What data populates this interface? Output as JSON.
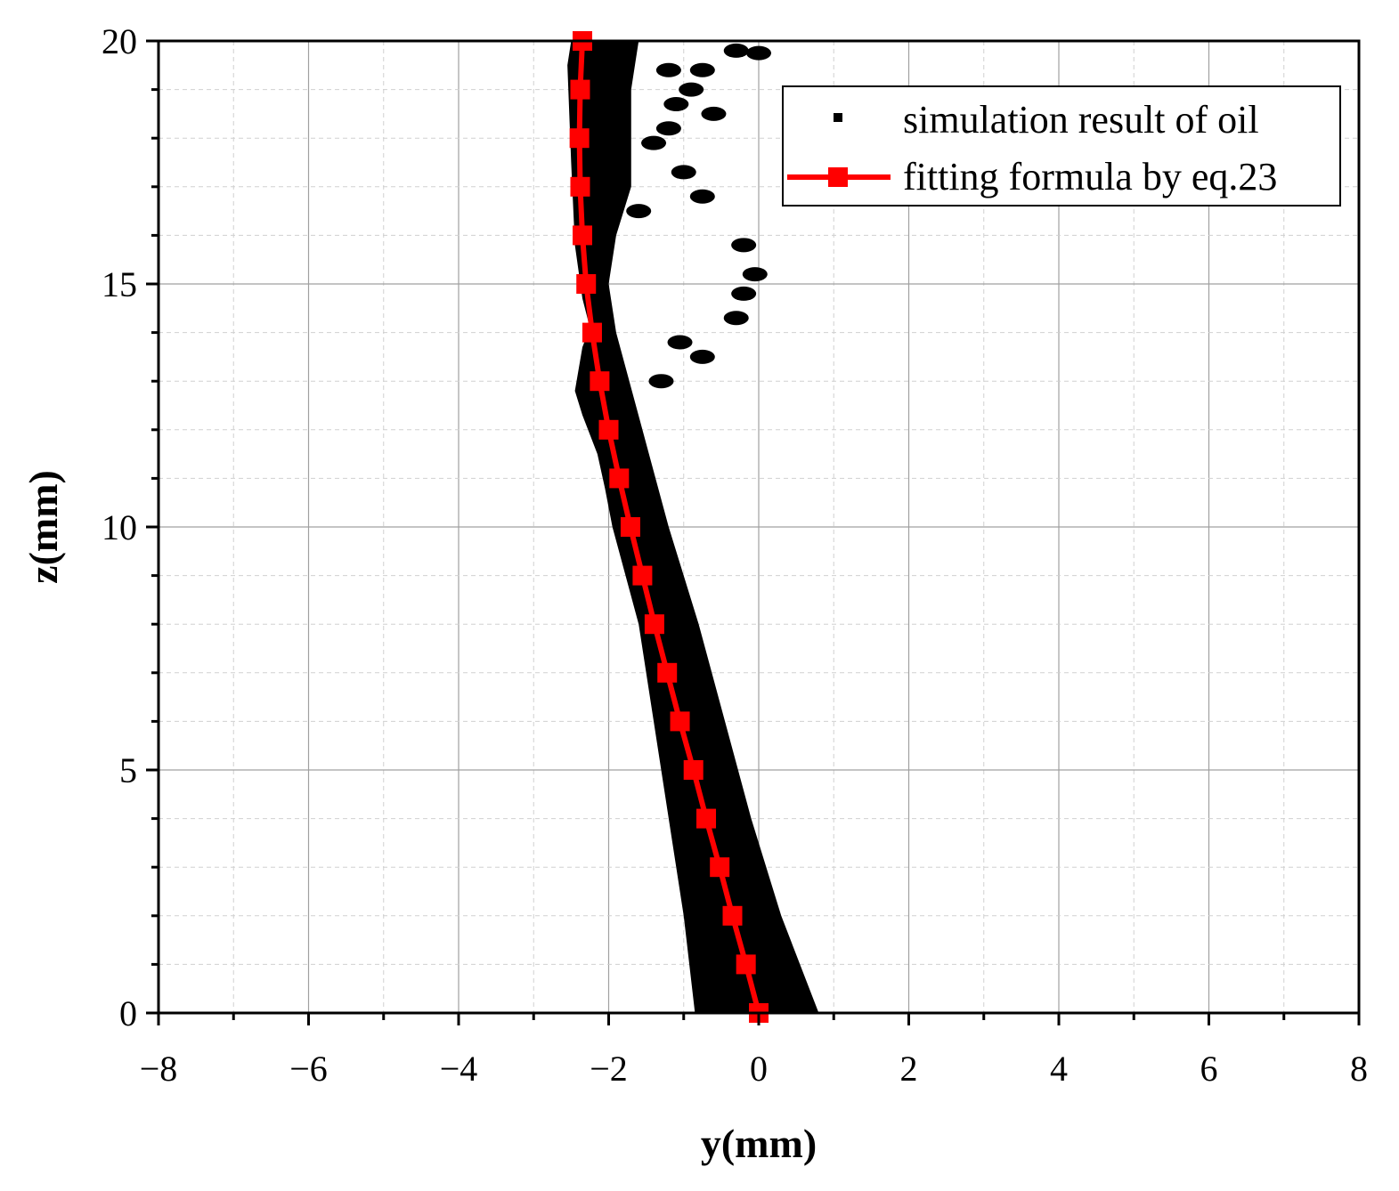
{
  "chart_data": {
    "type": "scatter",
    "xlabel": "y(mm)",
    "ylabel": "z(mm)",
    "xlim": [
      -8,
      8
    ],
    "ylim": [
      0,
      20
    ],
    "x_ticks": [
      -8,
      -6,
      -4,
      -2,
      0,
      2,
      4,
      6,
      8
    ],
    "x_tick_labels": [
      "−8",
      "−6",
      "−4",
      "−2",
      "0",
      "2",
      "4",
      "6",
      "8"
    ],
    "y_ticks": [
      0,
      5,
      10,
      15,
      20
    ],
    "y_tick_labels": [
      "0",
      "5",
      "10",
      "15",
      "20"
    ],
    "grid": true,
    "legend_position": "top-right",
    "colors": {
      "oil": "#000000",
      "fit": "#ff0000",
      "grid_major": "#a0a0a0",
      "grid_minor": "#d0d0d0"
    },
    "series": [
      {
        "name": "simulation result of oil",
        "kind": "filled-region",
        "left_edge": [
          [
            -0.85,
            0
          ],
          [
            -1.0,
            2
          ],
          [
            -1.2,
            4
          ],
          [
            -1.4,
            6
          ],
          [
            -1.6,
            8
          ],
          [
            -1.95,
            10
          ],
          [
            -2.05,
            10.8
          ],
          [
            -2.15,
            11.5
          ],
          [
            -2.35,
            12.3
          ],
          [
            -2.45,
            12.8
          ],
          [
            -2.35,
            13.7
          ],
          [
            -2.25,
            14.1
          ],
          [
            -2.35,
            14.7
          ],
          [
            -2.45,
            15.8
          ],
          [
            -2.5,
            17.5
          ],
          [
            -2.55,
            19.5
          ],
          [
            -2.5,
            20
          ]
        ],
        "right_edge": [
          [
            0.8,
            0
          ],
          [
            0.3,
            2
          ],
          [
            -0.1,
            4
          ],
          [
            -0.45,
            6
          ],
          [
            -0.8,
            8
          ],
          [
            -1.2,
            10
          ],
          [
            -1.55,
            12
          ],
          [
            -1.9,
            14
          ],
          [
            -2.0,
            15
          ],
          [
            -1.9,
            16
          ],
          [
            -1.7,
            17
          ],
          [
            -1.7,
            18
          ],
          [
            -1.7,
            19
          ],
          [
            -1.6,
            20
          ]
        ],
        "droplets": [
          [
            -1.2,
            19.4
          ],
          [
            -0.75,
            19.4
          ],
          [
            -0.3,
            19.8
          ],
          [
            0.0,
            19.75
          ],
          [
            -0.9,
            19.0
          ],
          [
            -1.1,
            18.7
          ],
          [
            -0.6,
            18.5
          ],
          [
            -1.2,
            18.2
          ],
          [
            -1.4,
            17.9
          ],
          [
            -1.0,
            17.3
          ],
          [
            -0.75,
            16.8
          ],
          [
            -1.6,
            16.5
          ],
          [
            -0.2,
            15.8
          ],
          [
            -0.05,
            15.2
          ],
          [
            -0.2,
            14.8
          ],
          [
            -0.3,
            14.3
          ],
          [
            -1.05,
            13.8
          ],
          [
            -0.75,
            13.5
          ],
          [
            -1.3,
            13.0
          ]
        ]
      },
      {
        "name": "fitting formula by eq.23",
        "kind": "line-with-square-markers",
        "x": [
          0.0,
          -0.17,
          -0.35,
          -0.52,
          -0.7,
          -0.87,
          -1.05,
          -1.22,
          -1.39,
          -1.55,
          -1.71,
          -1.86,
          -2.0,
          -2.12,
          -2.22,
          -2.3,
          -2.35,
          -2.38,
          -2.39,
          -2.38,
          -2.35
        ],
        "y": [
          0,
          1,
          2,
          3,
          4,
          5,
          6,
          7,
          8,
          9,
          10,
          11,
          12,
          13,
          14,
          15,
          16,
          17,
          18,
          19,
          20
        ]
      }
    ]
  }
}
